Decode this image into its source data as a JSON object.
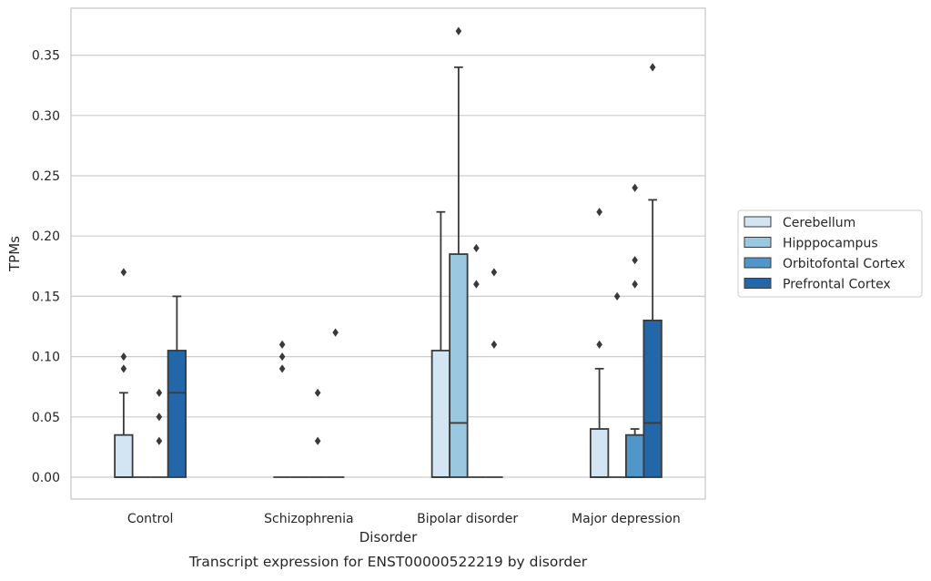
{
  "chart_data": {
    "type": "box",
    "caption": "Transcript expression for ENST00000522219 by disorder",
    "xlabel": "Disorder",
    "ylabel": "TPMs",
    "ylim": [
      -0.018,
      0.389
    ],
    "yticks": [
      "0.00",
      "0.05",
      "0.10",
      "0.15",
      "0.20",
      "0.25",
      "0.30",
      "0.35"
    ],
    "grid": "horizontal",
    "legend_position": "right",
    "categories": [
      "Control",
      "Schizophrenia",
      "Bipolar disorder",
      "Major depression"
    ],
    "series": [
      {
        "name": "Cerebellum",
        "color": "#d3e4f3",
        "boxes": [
          {
            "q1": 0,
            "median": 0,
            "q3": 0.035,
            "whisker_low": 0,
            "whisker_high": 0.07,
            "outliers": [
              0.17,
              0.1,
              0.09
            ]
          },
          {
            "q1": 0,
            "median": 0,
            "q3": 0,
            "whisker_low": 0,
            "whisker_high": 0,
            "outliers": [
              0.11,
              0.1,
              0.09
            ]
          },
          {
            "q1": 0,
            "median": 0,
            "q3": 0.105,
            "whisker_low": 0,
            "whisker_high": 0.22,
            "outliers": []
          },
          {
            "q1": 0,
            "median": 0,
            "q3": 0.04,
            "whisker_low": 0,
            "whisker_high": 0.09,
            "outliers": [
              0.22,
              0.11
            ]
          }
        ]
      },
      {
        "name": "Hipppocampus",
        "color": "#9ac8e0",
        "boxes": [
          {
            "q1": 0,
            "median": 0,
            "q3": 0,
            "whisker_low": 0,
            "whisker_high": 0,
            "outliers": []
          },
          {
            "q1": 0,
            "median": 0,
            "q3": 0,
            "whisker_low": 0,
            "whisker_high": 0,
            "outliers": []
          },
          {
            "q1": 0,
            "median": 0.045,
            "q3": 0.185,
            "whisker_low": 0,
            "whisker_high": 0.34,
            "outliers": [
              0.37
            ]
          },
          {
            "q1": 0,
            "median": 0,
            "q3": 0,
            "whisker_low": 0,
            "whisker_high": 0,
            "outliers": [
              0.15
            ]
          }
        ]
      },
      {
        "name": "Orbitofontal Cortex",
        "color": "#5096c8",
        "boxes": [
          {
            "q1": 0,
            "median": 0,
            "q3": 0,
            "whisker_low": 0,
            "whisker_high": 0,
            "outliers": [
              0.07,
              0.05,
              0.03
            ]
          },
          {
            "q1": 0,
            "median": 0,
            "q3": 0,
            "whisker_low": 0,
            "whisker_high": 0,
            "outliers": [
              0.07,
              0.03
            ]
          },
          {
            "q1": 0,
            "median": 0,
            "q3": 0,
            "whisker_low": 0,
            "whisker_high": 0,
            "outliers": [
              0.19,
              0.16
            ]
          },
          {
            "q1": 0,
            "median": 0,
            "q3": 0.035,
            "whisker_low": 0,
            "whisker_high": 0.04,
            "outliers": [
              0.24,
              0.18,
              0.16
            ]
          }
        ]
      },
      {
        "name": "Prefrontal Cortex",
        "color": "#2467a9",
        "boxes": [
          {
            "q1": 0,
            "median": 0.07,
            "q3": 0.105,
            "whisker_low": 0,
            "whisker_high": 0.15,
            "outliers": []
          },
          {
            "q1": 0,
            "median": 0,
            "q3": 0,
            "whisker_low": 0,
            "whisker_high": 0,
            "outliers": [
              0.12
            ]
          },
          {
            "q1": 0,
            "median": 0,
            "q3": 0,
            "whisker_low": 0,
            "whisker_high": 0,
            "outliers": [
              0.17,
              0.11
            ]
          },
          {
            "q1": 0,
            "median": 0.045,
            "q3": 0.13,
            "whisker_low": 0,
            "whisker_high": 0.23,
            "outliers": [
              0.34
            ]
          }
        ]
      }
    ]
  }
}
